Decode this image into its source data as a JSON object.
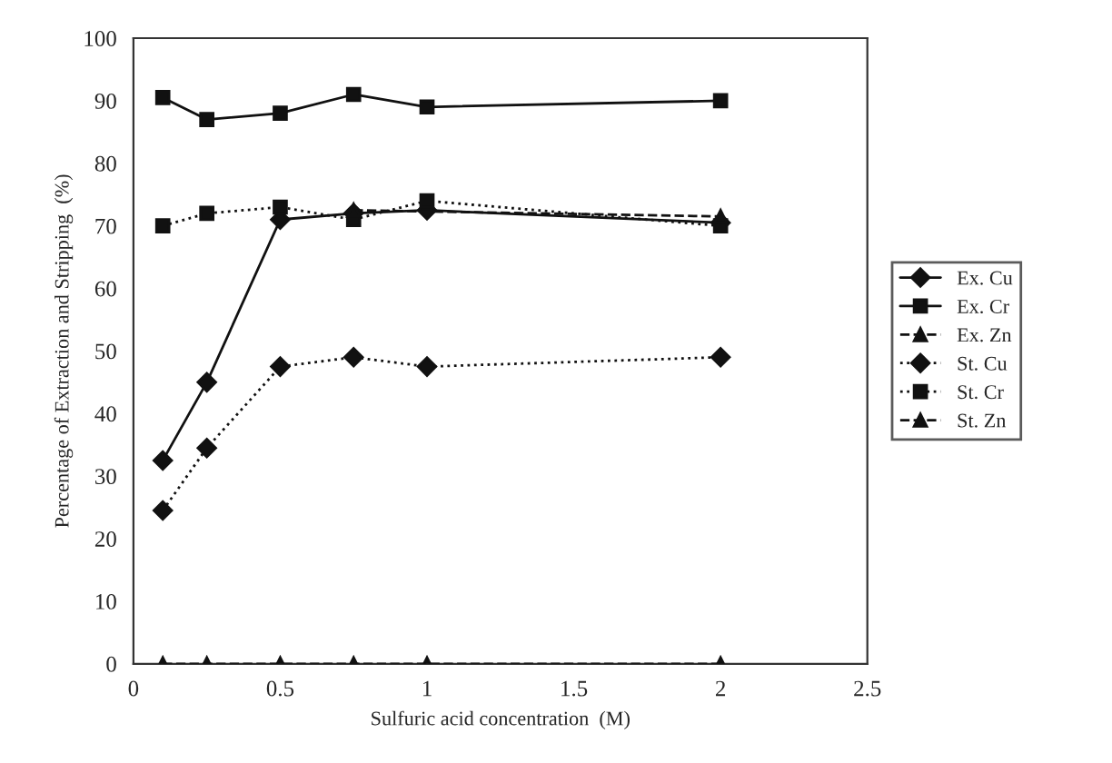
{
  "chart_data": {
    "type": "line",
    "xlabel": "Sulfuric acid concentration  (M)",
    "ylabel": "Percentage of Extraction and Stripping  (%)",
    "xlim": [
      0,
      2.5
    ],
    "xticks": [
      0,
      0.5,
      1,
      1.5,
      2,
      2.5
    ],
    "ylim": [
      0,
      100
    ],
    "yticks": [
      0,
      10,
      20,
      30,
      40,
      50,
      60,
      70,
      80,
      90,
      100
    ],
    "grid": false,
    "legend": "right",
    "series": [
      {
        "name": "Ex. Cu",
        "color": "#111111",
        "marker": "diamond",
        "line_style": "solid",
        "x": [
          0.1,
          0.25,
          0.5,
          0.75,
          1,
          2
        ],
        "values": [
          32.5,
          45,
          71,
          72,
          72.5,
          70.5
        ]
      },
      {
        "name": "Ex. Cr",
        "color": "#111111",
        "marker": "square",
        "line_style": "solid",
        "x": [
          0.1,
          0.25,
          0.5,
          0.75,
          1,
          2
        ],
        "values": [
          90.5,
          87,
          88,
          91,
          89,
          90
        ]
      },
      {
        "name": "Ex. Zn",
        "color": "#111111",
        "marker": "triangle",
        "line_style": "dashed",
        "x": [
          0.75,
          2
        ],
        "values": [
          72.5,
          71.5
        ]
      },
      {
        "name": "St. Cu",
        "color": "#111111",
        "marker": "diamond",
        "line_style": "dotted",
        "x": [
          0.1,
          0.25,
          0.5,
          0.75,
          1,
          2
        ],
        "values": [
          24.5,
          34.5,
          47.5,
          49,
          47.5,
          49
        ]
      },
      {
        "name": "St. Cr",
        "color": "#111111",
        "marker": "square",
        "line_style": "dotted",
        "x": [
          0.1,
          0.25,
          0.5,
          0.75,
          1,
          2
        ],
        "values": [
          70,
          72,
          73,
          71,
          74,
          70
        ]
      },
      {
        "name": "St. Zn",
        "color": "#111111",
        "marker": "triangle",
        "line_style": "dashed",
        "x": [
          0.1,
          0.25,
          0.5,
          0.75,
          1,
          2
        ],
        "values": [
          0,
          0,
          0,
          0,
          0,
          0
        ]
      }
    ]
  }
}
